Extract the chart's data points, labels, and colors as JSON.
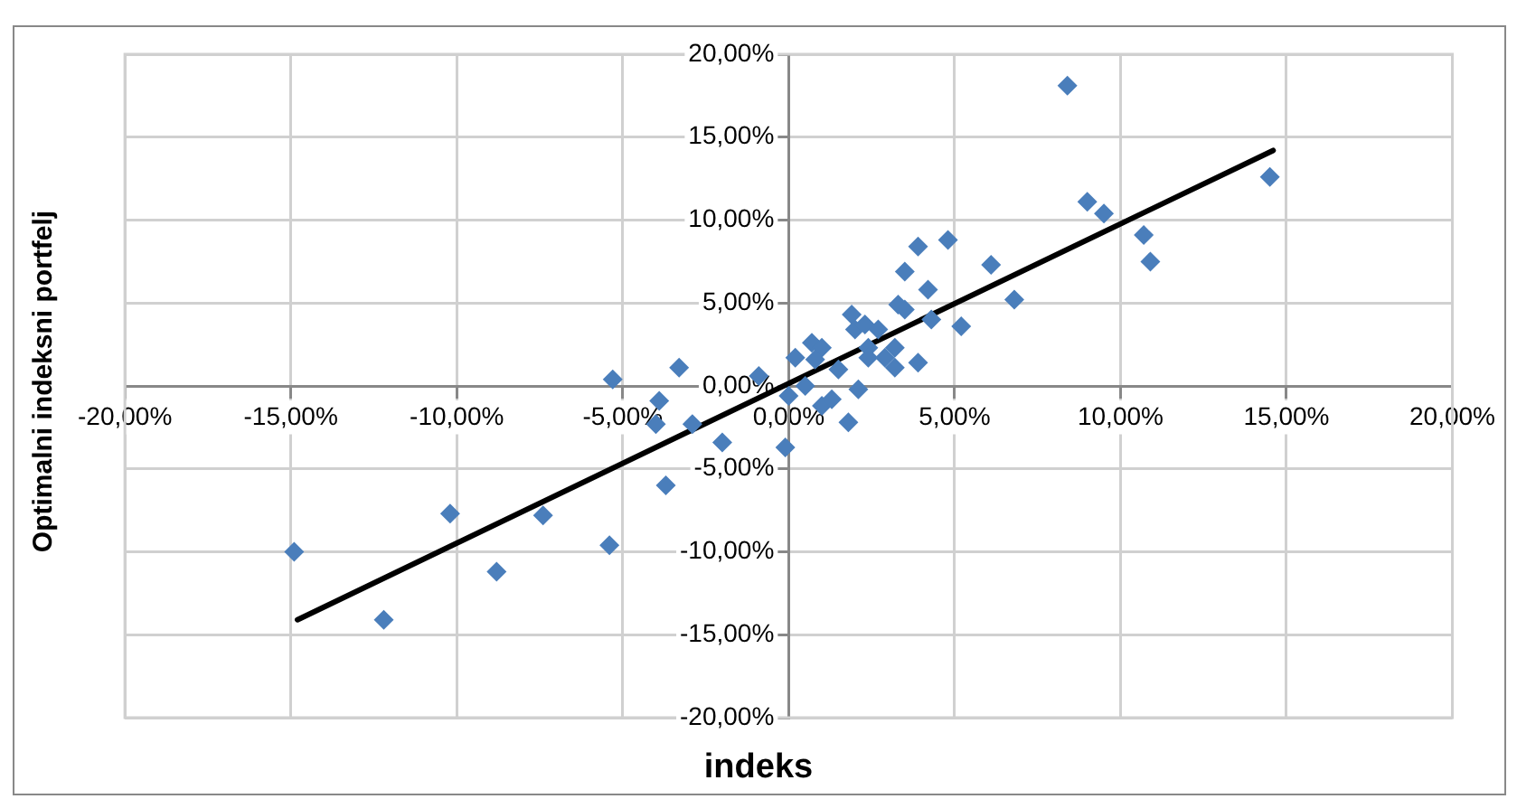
{
  "chart_data": {
    "type": "scatter",
    "xlabel": "indeks",
    "ylabel": "Optimalni indeksni portfelj",
    "xlim": [
      -20,
      20
    ],
    "ylim": [
      -20,
      20
    ],
    "xticks": [
      {
        "value": -20,
        "label": "-20,00%"
      },
      {
        "value": -15,
        "label": "-15,00%"
      },
      {
        "value": -10,
        "label": "-10,00%"
      },
      {
        "value": -5,
        "label": "-5,00%"
      },
      {
        "value": 0,
        "label": "0,00%"
      },
      {
        "value": 5,
        "label": "5,00%"
      },
      {
        "value": 10,
        "label": "10,00%"
      },
      {
        "value": 15,
        "label": "15,00%"
      },
      {
        "value": 20,
        "label": "20,00%"
      }
    ],
    "yticks": [
      {
        "value": -20,
        "label": "-20,00%"
      },
      {
        "value": -15,
        "label": "-15,00%"
      },
      {
        "value": -10,
        "label": "-10,00%"
      },
      {
        "value": -5,
        "label": "-5,00%"
      },
      {
        "value": 0,
        "label": "0,00%"
      },
      {
        "value": 5,
        "label": "5,00%"
      },
      {
        "value": 10,
        "label": "10,00%"
      },
      {
        "value": 15,
        "label": "15,00%"
      },
      {
        "value": 20,
        "label": "20,00%"
      }
    ],
    "grid": true,
    "marker": "diamond",
    "legend": false,
    "series": [
      {
        "type": "scatter",
        "color": "#4a7ebb",
        "x": [
          -14.9,
          -12.2,
          -10.2,
          -7.4,
          -8.8,
          -5.4,
          -5.3,
          -3.9,
          -4.0,
          -3.3,
          -2.9,
          -3.7,
          -2.0,
          -0.9,
          -0.1,
          0.2,
          0.0,
          0.5,
          0.7,
          1.0,
          0.8,
          1.0,
          1.3,
          1.5,
          1.9,
          2.0,
          1.8,
          2.1,
          2.3,
          2.4,
          2.4,
          2.7,
          2.9,
          3.2,
          3.3,
          3.5,
          3.2,
          3.9,
          3.5,
          4.2,
          4.3,
          5.2,
          6.1,
          6.8,
          8.4,
          9.0,
          9.5,
          10.7,
          10.9,
          14.5,
          4.8,
          3.9
        ],
        "values": [
          -10.0,
          -14.1,
          -7.7,
          -7.8,
          -11.2,
          -9.6,
          0.4,
          -0.9,
          -2.3,
          1.1,
          -2.3,
          -6.0,
          -3.4,
          0.6,
          -3.7,
          1.7,
          -0.6,
          0.0,
          2.6,
          2.3,
          1.6,
          -1.2,
          -0.8,
          1.0,
          4.3,
          3.4,
          -2.2,
          -0.2,
          3.7,
          2.3,
          1.7,
          3.4,
          1.7,
          2.3,
          4.9,
          4.6,
          1.1,
          1.4,
          6.9,
          5.8,
          4.0,
          3.6,
          7.3,
          5.2,
          18.1,
          11.1,
          10.4,
          9.1,
          7.5,
          12.6,
          8.8,
          8.4
        ]
      },
      {
        "type": "line",
        "color": "#000000",
        "marker": "none",
        "x": [
          -14.8,
          14.6
        ],
        "values": [
          -14.1,
          14.2
        ]
      }
    ]
  }
}
